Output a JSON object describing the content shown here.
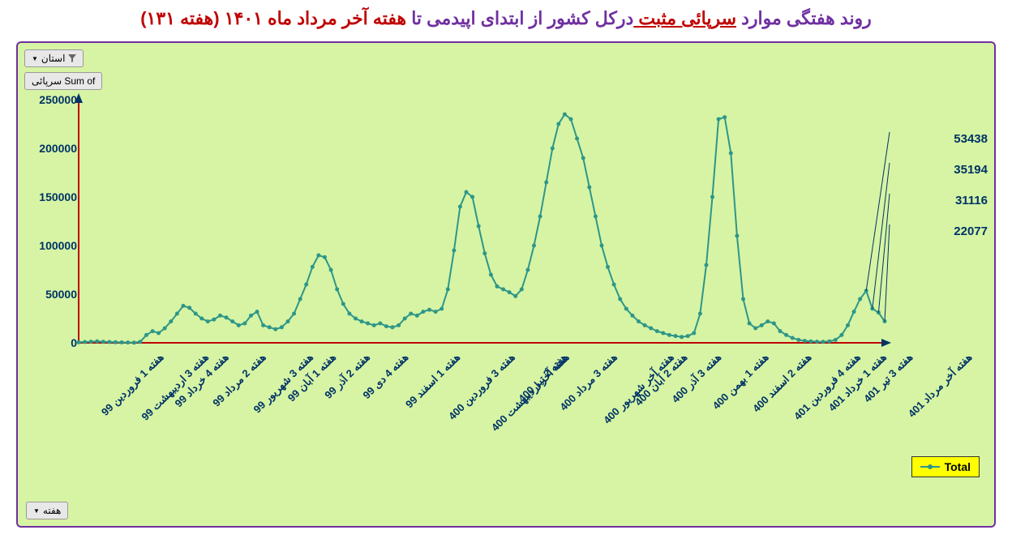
{
  "title": {
    "parts": [
      {
        "text": "روند هفتگی موارد ",
        "color": "#7030a0"
      },
      {
        "text": "سرپائی مثبت ",
        "color": "#c00000",
        "underline": true
      },
      {
        "text": "درکل کشور از ابتدای اپیدمی تا ",
        "color": "#7030a0"
      },
      {
        "text": "هفته آخر مرداد ماه ۱۴۰۱ ",
        "color": "#c00000"
      },
      {
        "text": "(هفته ۱۳۱)",
        "color": "#c00000"
      }
    ]
  },
  "filters": {
    "province_label": "استان",
    "week_label": "هفته",
    "sum_label": "Sum of سرپائی"
  },
  "legend": {
    "label": "Total"
  },
  "chart": {
    "type": "line",
    "background_color": "#d6f4a4",
    "border_color": "#7030a0",
    "line_color": "#2e9688",
    "marker_color": "#2e9688",
    "axis_color": "#c00000",
    "axis_arrow_color": "#003366",
    "tick_color": "#003366",
    "ylim": [
      0,
      250000
    ],
    "ytick_step": 50000,
    "y_ticks": [
      "0",
      "50000",
      "100000",
      "150000",
      "200000",
      "250000"
    ],
    "x_labels": [
      "هفته 1 فروردین 99",
      "هفته 3 اردیبهشت 99",
      "هفته 4 خرداد 99",
      "هفته 2 مرداد 99",
      "هفته 3 شهریور 99",
      "هفته 1 آبان 99",
      "هفته 2 آذر 99",
      "هفته 4 دی 99",
      "هفته 1 اسفند 99",
      "هفته 3 فروردین 400",
      "هفته آخر اردیبهشت 400",
      "هفته 2 تیر 400",
      "هفته 3 مرداد 400",
      "هفته آخر شهریور 400",
      "هفته 2 آبان 400",
      "هفته 3 آذر 400",
      "هفته 1 بهمن 400",
      "هفته 2 اسفند 400",
      "هفته 4 فروردین 401",
      "هفته 1 خرداد 401",
      "هفته 3 تیر 401",
      "هفته آخر مرداد 401"
    ],
    "values": [
      500,
      800,
      1200,
      1500,
      1000,
      800,
      600,
      400,
      300,
      200,
      1000,
      8000,
      12000,
      10000,
      15000,
      22000,
      30000,
      38000,
      36000,
      30000,
      25000,
      22000,
      24000,
      28000,
      26000,
      22000,
      18000,
      20000,
      28000,
      32000,
      18000,
      16000,
      14000,
      16000,
      22000,
      30000,
      45000,
      60000,
      78000,
      90000,
      88000,
      75000,
      55000,
      40000,
      30000,
      25000,
      22000,
      20000,
      18000,
      20000,
      17000,
      16000,
      18000,
      25000,
      30000,
      28000,
      32000,
      34000,
      32000,
      35000,
      55000,
      95000,
      140000,
      155000,
      150000,
      120000,
      92000,
      70000,
      58000,
      55000,
      52000,
      48000,
      55000,
      75000,
      100000,
      130000,
      165000,
      200000,
      225000,
      235000,
      230000,
      210000,
      190000,
      160000,
      130000,
      100000,
      78000,
      60000,
      45000,
      35000,
      28000,
      22000,
      18000,
      15000,
      12000,
      10000,
      8000,
      7000,
      6000,
      7000,
      10000,
      30000,
      80000,
      150000,
      230000,
      232000,
      195000,
      110000,
      45000,
      20000,
      15000,
      18000,
      22000,
      20000,
      12000,
      8000,
      5000,
      3000,
      2000,
      1500,
      1200,
      1000,
      1500,
      3000,
      8000,
      18000,
      32000,
      45000,
      53438,
      35194,
      31116,
      22077
    ],
    "callouts": [
      {
        "label": "53438",
        "value": 53438,
        "index": 128
      },
      {
        "label": "35194",
        "value": 35194,
        "index": 129
      },
      {
        "label": "31116",
        "value": 31116,
        "index": 130
      },
      {
        "label": "22077",
        "value": 22077,
        "index": 131
      }
    ]
  }
}
